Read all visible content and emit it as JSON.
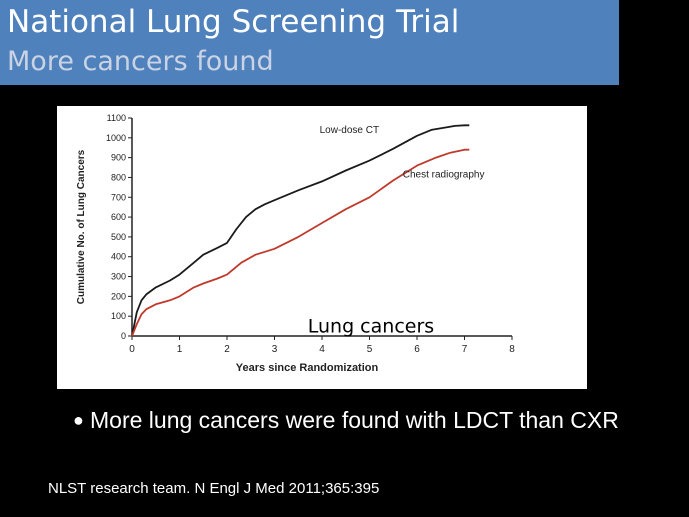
{
  "slide": {
    "title": "National Lung Screening Trial",
    "subtitle": "More cancers found",
    "bullet": "More lung cancers were found with LDCT than CXR",
    "citation": "NLST research team. N Engl J Med 2011;365:395",
    "title_bar_color": "#4f81bd"
  },
  "chart_data": {
    "type": "line",
    "title": "",
    "xlabel": "Years since Randomization",
    "ylabel": "Cumulative No. of Lung Cancers",
    "annotation": "Lung cancers",
    "xlim": [
      0,
      8
    ],
    "ylim": [
      0,
      1100
    ],
    "x_ticks": [
      0,
      1,
      2,
      3,
      4,
      5,
      6,
      7,
      8
    ],
    "y_ticks": [
      0,
      100,
      200,
      300,
      400,
      500,
      600,
      700,
      800,
      900,
      1000,
      1100
    ],
    "grid": false,
    "series": [
      {
        "name": "Low-dose CT",
        "color": "#1a1a1a",
        "x": [
          0,
          0.1,
          0.2,
          0.3,
          0.5,
          0.8,
          1.0,
          1.3,
          1.5,
          1.8,
          2.0,
          2.2,
          2.4,
          2.6,
          2.8,
          3.0,
          3.5,
          4.0,
          4.5,
          5.0,
          5.5,
          6.0,
          6.3,
          6.6,
          6.8,
          7.0,
          7.1
        ],
        "y": [
          0,
          120,
          180,
          210,
          245,
          280,
          310,
          370,
          410,
          445,
          470,
          540,
          600,
          640,
          665,
          685,
          735,
          780,
          835,
          885,
          945,
          1010,
          1040,
          1052,
          1060,
          1063,
          1063
        ]
      },
      {
        "name": "Chest radiography",
        "color": "#c0392b",
        "x": [
          0,
          0.1,
          0.2,
          0.3,
          0.5,
          0.8,
          1.0,
          1.3,
          1.5,
          1.8,
          2.0,
          2.3,
          2.6,
          3.0,
          3.5,
          4.0,
          4.5,
          5.0,
          5.5,
          6.0,
          6.4,
          6.7,
          7.0,
          7.1
        ],
        "y": [
          0,
          60,
          110,
          135,
          160,
          180,
          200,
          245,
          265,
          290,
          310,
          370,
          410,
          440,
          500,
          570,
          640,
          700,
          785,
          860,
          900,
          925,
          940,
          940
        ]
      }
    ]
  }
}
